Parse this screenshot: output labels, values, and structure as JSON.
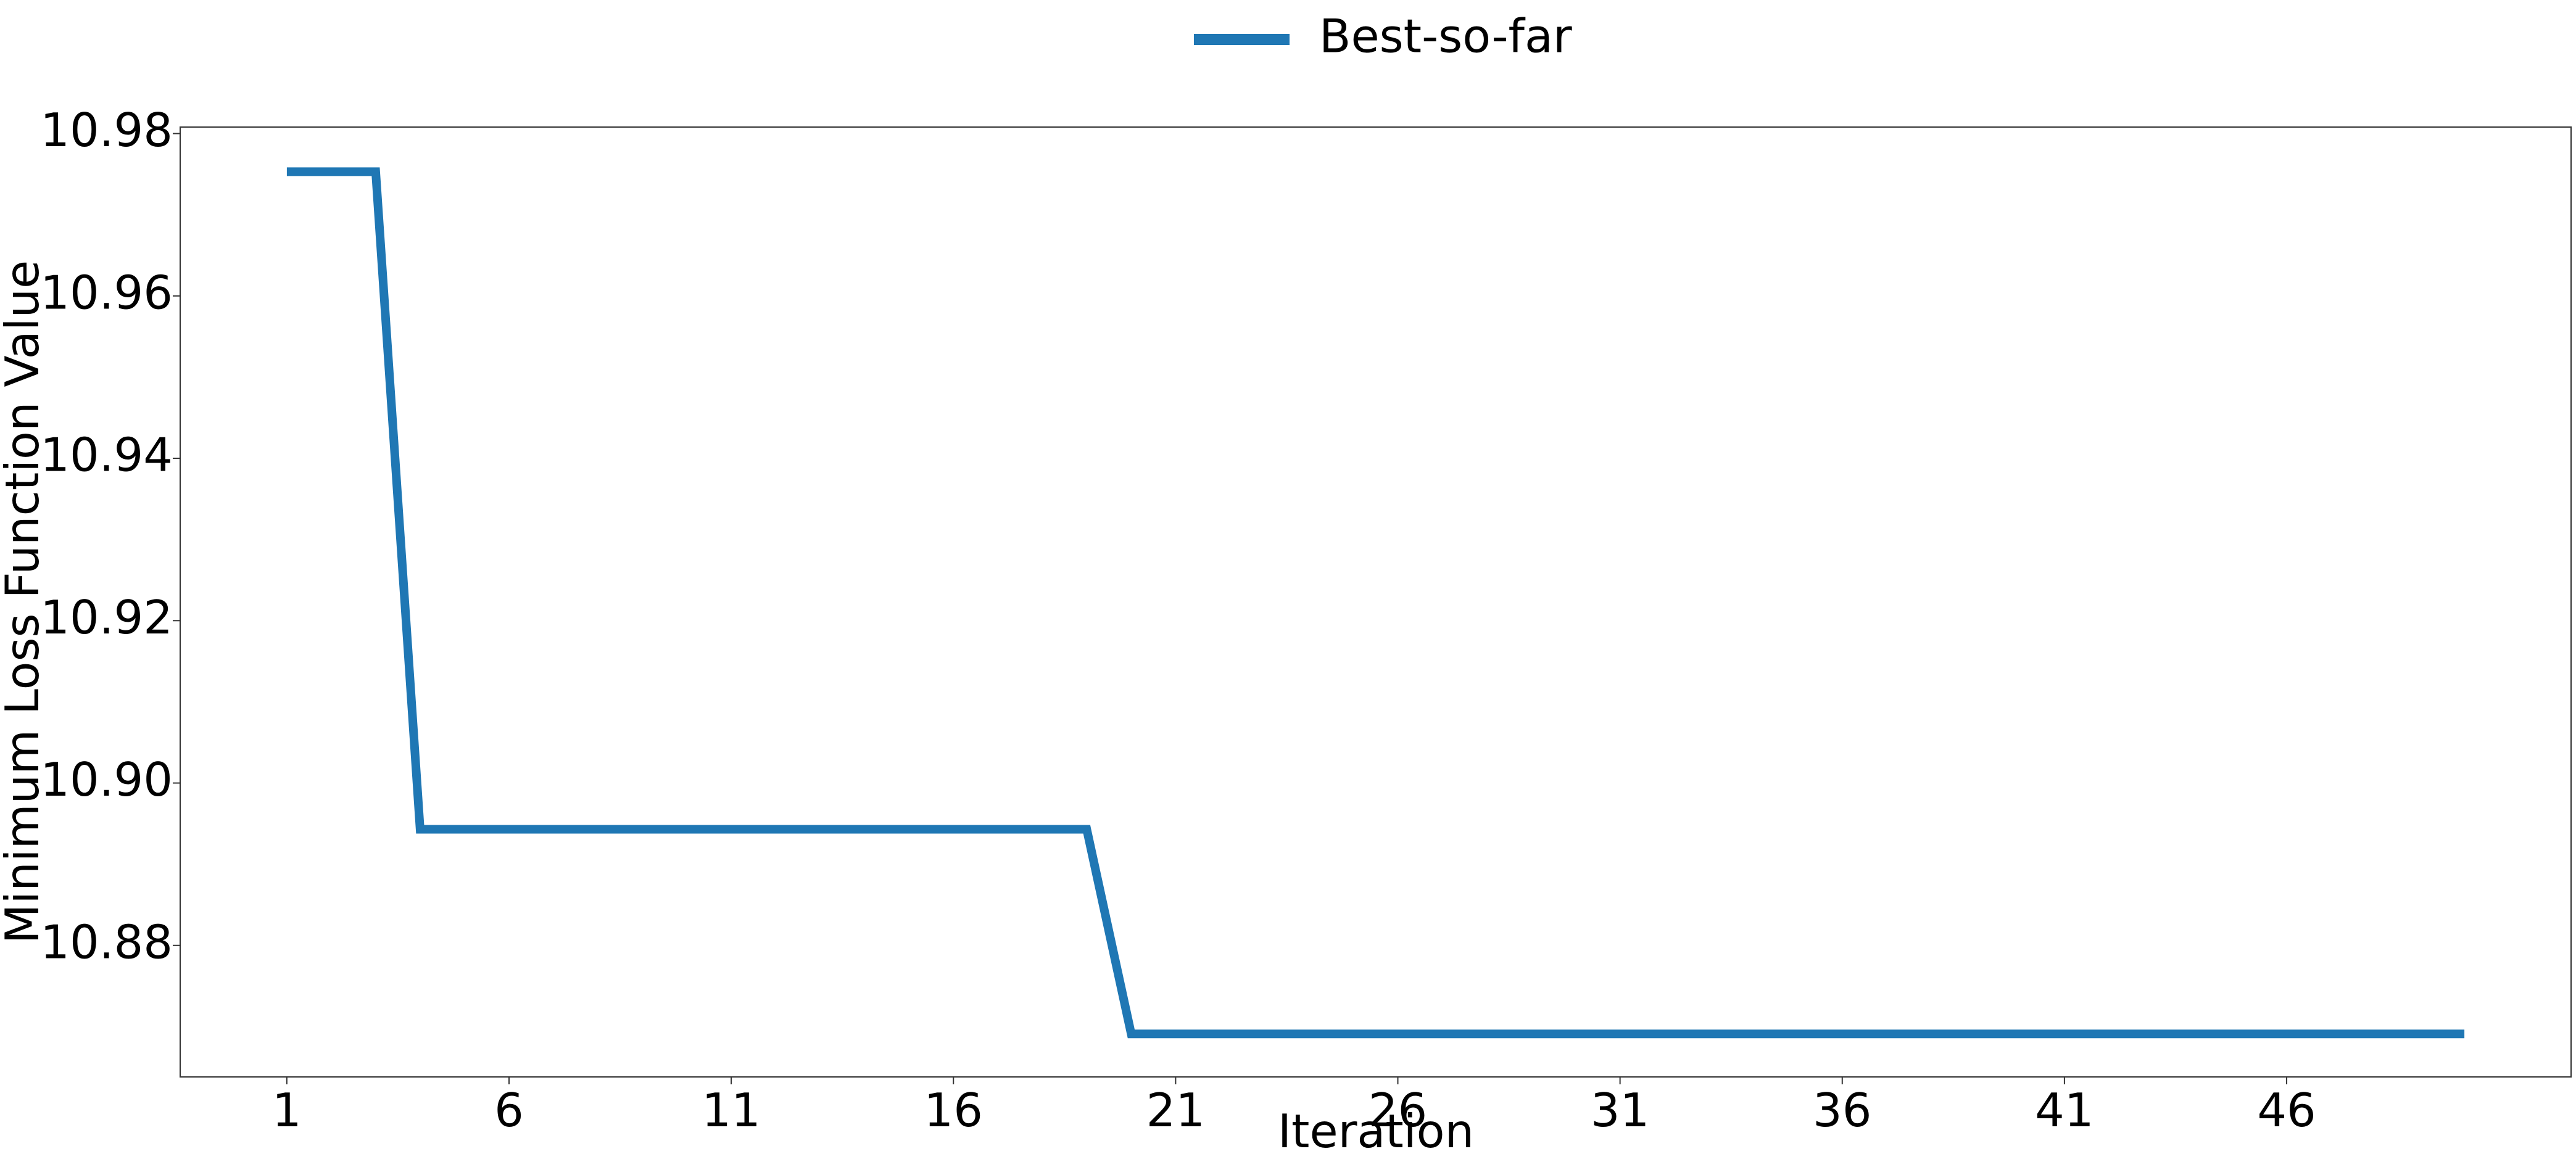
{
  "chart_data": {
    "type": "line",
    "xlabel": "Iteration",
    "ylabel": "Minimum Loss Function Value",
    "x_ticks": [
      1,
      6,
      11,
      16,
      21,
      26,
      31,
      36,
      41,
      46
    ],
    "y_ticks": [
      "10.88",
      "10.90",
      "10.92",
      "10.94",
      "10.96",
      "10.98"
    ],
    "xlim": [
      -1.4,
      52.4
    ],
    "ylim": [
      10.8638,
      10.9808
    ],
    "grid": false,
    "legend_position": "top-center",
    "series": [
      {
        "name": "Best-so-far",
        "color": "#1f77b4",
        "x": [
          1,
          2,
          3,
          4,
          5,
          6,
          7,
          8,
          9,
          10,
          11,
          12,
          13,
          14,
          15,
          16,
          17,
          18,
          19,
          20,
          21,
          22,
          23,
          24,
          25,
          26,
          27,
          28,
          29,
          30,
          31,
          32,
          33,
          34,
          35,
          36,
          37,
          38,
          39,
          40,
          41,
          42,
          43,
          44,
          45,
          46,
          47,
          48,
          49,
          50
        ],
        "y": [
          10.9753,
          10.9753,
          10.9753,
          10.8943,
          10.8943,
          10.8943,
          10.8943,
          10.8943,
          10.8943,
          10.8943,
          10.8943,
          10.8943,
          10.8943,
          10.8943,
          10.8943,
          10.8943,
          10.8943,
          10.8943,
          10.8943,
          10.8691,
          10.8691,
          10.8691,
          10.8691,
          10.8691,
          10.8691,
          10.8691,
          10.8691,
          10.8691,
          10.8691,
          10.8691,
          10.8691,
          10.8691,
          10.8691,
          10.8691,
          10.8691,
          10.8691,
          10.8691,
          10.8691,
          10.8691,
          10.8691,
          10.8691,
          10.8691,
          10.8691,
          10.8691,
          10.8691,
          10.8691,
          10.8691,
          10.8691,
          10.8691,
          10.8691
        ]
      }
    ]
  }
}
